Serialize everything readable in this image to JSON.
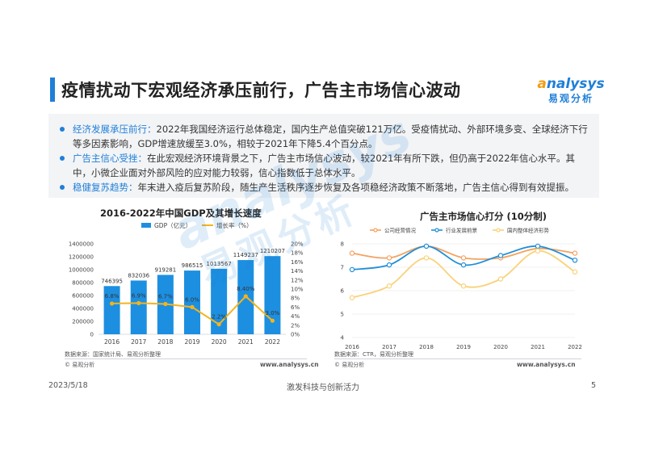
{
  "header": {
    "title": "疫情扰动下宏观经济承压前行，广告主市场信心波动",
    "logo_en_a": "a",
    "logo_en_rest": "nalysys",
    "logo_cn": "易观分析"
  },
  "summary": {
    "items": [
      {
        "label": "经济发展承压前行：",
        "text": "2022年我国经济运行总体稳定，国内生产总值突破121万亿。受疫情扰动、外部环境多变、全球经济下行等多因素影响，GDP增速放缓至3.0%，相较于2021年下降5.4个百分点。"
      },
      {
        "label": "广告主信心受挫：",
        "text": "在此宏观经济环境背景之下，广告主市场信心波动，较2021年有所下跌，但仍高于2022年信心水平。其中，小微企业面对外部风险的应对能力较弱，信心指数低于总体水平。"
      },
      {
        "label": "稳健复苏趋势：",
        "text": "年末进入疫后复苏阶段，随生产生活秩序逐步恢复及各项稳经济政策不断落地，广告主信心得到有效提振。"
      }
    ]
  },
  "watermark": {
    "en": "analysys",
    "cn": "易观分析"
  },
  "left_panel": {
    "source": "数据来源：国家统计局、易观分析整理",
    "site": "www.analysys.cn",
    "logo": "© 易观分析"
  },
  "right_panel": {
    "source": "数据来源：CTR，易观分析整理",
    "site": "www.analysys.cn",
    "logo": "© 易观分析"
  },
  "footer": {
    "date": "2023/5/18",
    "slogan": "激发科技与创新活力",
    "page": "5"
  },
  "colors": {
    "accent": "#1f7fd8",
    "bar": "#1d8fe0",
    "rate_line": "#f5b41c",
    "company": "#f4a261",
    "industry": "#1f8fd8",
    "economy": "#f9d27a"
  },
  "chart_data": [
    {
      "type": "bar",
      "title": "2016-2022年中国GDP及其增长速度",
      "categories": [
        "2016",
        "2017",
        "2018",
        "2019",
        "2020",
        "2021",
        "2022"
      ],
      "series": [
        {
          "name": "GDP（亿元）",
          "type": "bar",
          "axis": "left",
          "values": [
            746395,
            832036,
            919281,
            986515,
            1013567,
            1149237,
            1210207
          ],
          "labels": [
            "746395",
            "832036",
            "919281",
            "986515",
            "1013567",
            "1149237",
            "1210207"
          ]
        },
        {
          "name": "增长率（%）",
          "type": "line",
          "axis": "right",
          "values": [
            6.8,
            6.9,
            6.7,
            6.0,
            2.2,
            8.4,
            3.0
          ],
          "labels": [
            "6.8%",
            "6.9%",
            "6.7%",
            "6.0%",
            "2.2%",
            "8.40%",
            "3.0%"
          ]
        }
      ],
      "yleft": {
        "range": [
          0,
          1400000
        ],
        "ticks": [
          "0",
          "200000",
          "400000",
          "600000",
          "800000",
          "1000000",
          "1200000",
          "1400000"
        ]
      },
      "yright": {
        "range": [
          0,
          20
        ],
        "ticks": [
          "0%",
          "2%",
          "4%",
          "6%",
          "8%",
          "10%",
          "12%",
          "14%",
          "16%",
          "18%",
          "20%"
        ]
      },
      "grid": false,
      "legend": "top"
    },
    {
      "type": "line",
      "title": "广告主市场信心打分 (10分制)",
      "categories": [
        "2016",
        "2017",
        "2018",
        "2019",
        "2020",
        "2021",
        "2022"
      ],
      "series": [
        {
          "name": "公司经营情况",
          "values": [
            7.6,
            7.4,
            7.9,
            7.4,
            7.4,
            7.8,
            7.6
          ]
        },
        {
          "name": "行业发展前景",
          "values": [
            6.9,
            7.1,
            7.9,
            7.1,
            7.5,
            7.9,
            7.3
          ]
        },
        {
          "name": "国内整体经济形势",
          "values": [
            5.7,
            6.2,
            7.4,
            6.2,
            6.5,
            7.7,
            6.8
          ]
        }
      ],
      "ylim": [
        4,
        8
      ],
      "yticks": [
        "4",
        "5",
        "6",
        "7",
        "8"
      ],
      "grid": true,
      "legend": "top"
    }
  ]
}
